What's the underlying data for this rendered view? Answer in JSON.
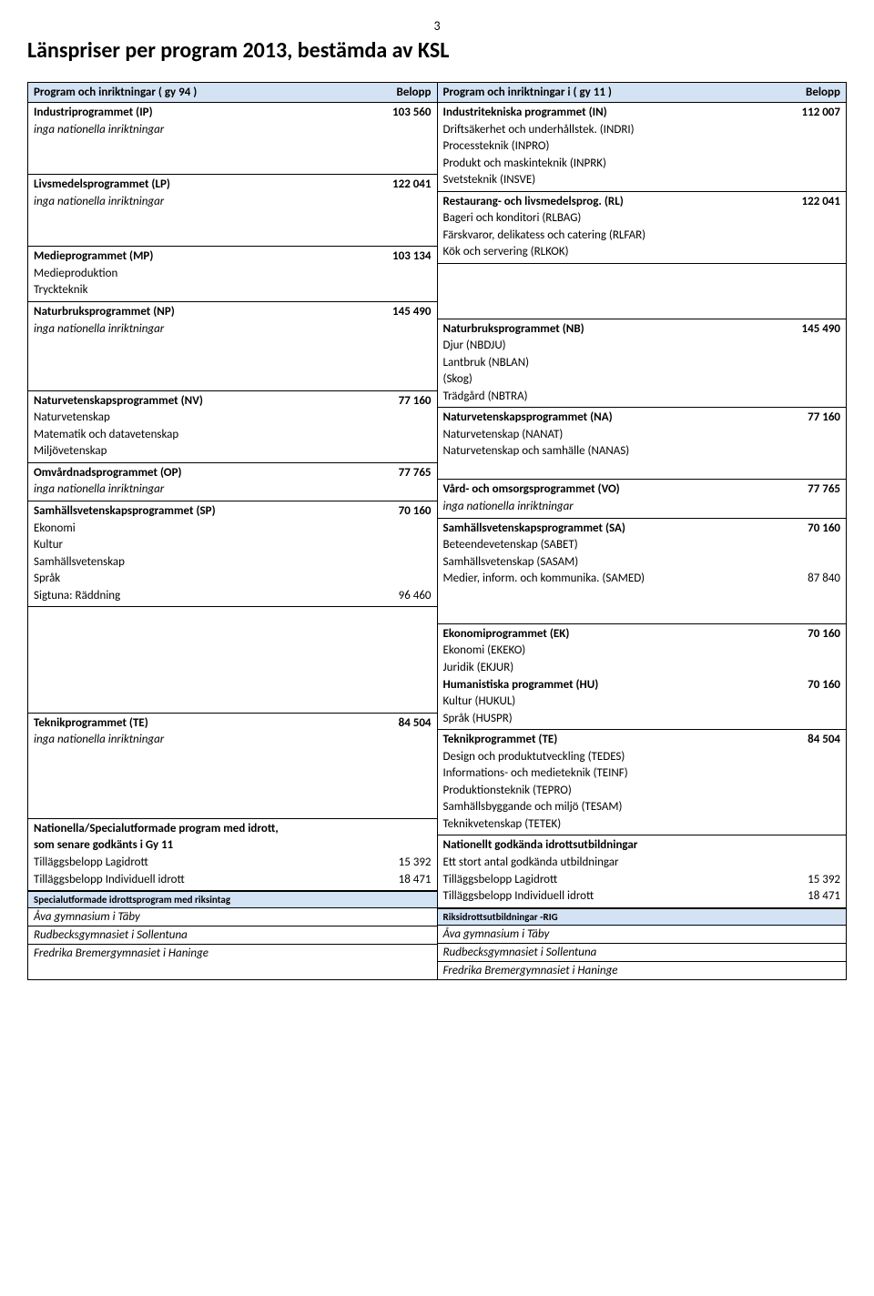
{
  "page_number": "3",
  "title": "Länspriser per program 2013, bestämda av KSL",
  "colors": {
    "header_bg": "#d4e3f4",
    "border": "#000000",
    "text": "#000000",
    "bg": "#ffffff"
  },
  "left": {
    "header": {
      "label": "Program och inriktningar ( gy 94 )",
      "amount": "Belopp"
    },
    "sections": [
      {
        "rows": [
          {
            "l": "Industriprogrammet (IP)",
            "r": "103 560",
            "b": true
          },
          {
            "l": "inga nationella inriktningar",
            "i": true
          }
        ],
        "pad_rows": 2
      },
      {
        "rows": [
          {
            "l": "Livsmedelsprogrammet (LP)",
            "r": "122 041",
            "b": true
          },
          {
            "l": "inga nationella inriktningar",
            "i": true
          }
        ],
        "pad_rows": 2
      },
      {
        "rows": [
          {
            "l": "Medieprogrammet (MP)",
            "r": "103 134",
            "b": true
          },
          {
            "l": "Medieproduktion"
          },
          {
            "l": "Tryckteknik"
          }
        ]
      },
      {
        "rows": [
          {
            "l": "Naturbruksprogrammet (NP)",
            "r": "145 490",
            "b": true
          },
          {
            "l": "inga nationella inriktningar",
            "i": true
          }
        ],
        "pad_rows": 3
      },
      {
        "rows": [
          {
            "l": "Naturvetenskapsprogrammet (NV)",
            "r": "77 160",
            "b": true
          },
          {
            "l": "Naturvetenskap"
          },
          {
            "l": "Matematik och datavetenskap"
          },
          {
            "l": "Miljövetenskap"
          }
        ]
      },
      {
        "rows": [
          {
            "l": "Omvårdnadsprogrammet (OP)",
            "r": "77 765",
            "b": true
          },
          {
            "l": "inga nationella inriktningar",
            "i": true
          }
        ]
      },
      {
        "rows": [
          {
            "l": "Samhällsvetenskapsprogrammet (SP)",
            "r": "70 160",
            "b": true
          },
          {
            "l": "Ekonomi"
          },
          {
            "l": "Kultur"
          },
          {
            "l": "Samhällsvetenskap"
          },
          {
            "l": "Språk"
          },
          {
            "l": "Sigtuna: Räddning",
            "r": "96 460"
          }
        ]
      },
      {
        "rows": [],
        "pad_rows": 6
      },
      {
        "rows": [
          {
            "l": "Teknikprogrammet (TE)",
            "r": "84 504",
            "b": true
          },
          {
            "l": "inga nationella inriktningar",
            "i": true
          }
        ],
        "pad_rows": 4
      },
      {
        "rows": [
          {
            "l": "Nationella/Specialutformade program med idrott,",
            "b": true
          },
          {
            "l": "som senare godkänts i Gy 11",
            "b": true
          },
          {
            "l": "Tilläggsbelopp Lagidrott",
            "r": "15 392"
          },
          {
            "l": "Tilläggsbelopp Individuell idrott",
            "r": "18 471"
          }
        ]
      }
    ],
    "small_header": "Specialutformade idrottsprogram med riksintag",
    "bottom": [
      "Åva gymnasium i Täby",
      "Rudbecksgymnasiet i Sollentuna",
      "Fredrika Bremergymnasiet i Haninge"
    ]
  },
  "right": {
    "header": {
      "label": "Program och inriktningar i ( gy 11 )",
      "amount": "Belopp"
    },
    "sections": [
      {
        "rows": [
          {
            "l": "Industritekniska programmet (IN)",
            "r": "112 007",
            "b": true
          },
          {
            "l": "Driftsäkerhet och underhållstek. (INDRI)"
          },
          {
            "l": "Processteknik (INPRO)"
          },
          {
            "l": "Produkt och maskinteknik (INPRK)"
          },
          {
            "l": "Svetsteknik (INSVE)"
          }
        ]
      },
      {
        "rows": [
          {
            "l": "Restaurang- och livsmedelsprog. (RL)",
            "r": "122 041",
            "b": true
          },
          {
            "l": "Bageri och konditori (RLBAG)"
          },
          {
            "l": "Färskvaror, delikatess och catering (RLFAR)"
          },
          {
            "l": "Kök och servering (RLKOK)"
          }
        ]
      },
      {
        "rows": [],
        "pad_rows": 3
      },
      {
        "rows": [
          {
            "l": "Naturbruksprogrammet (NB)",
            "r": "145 490",
            "b": true
          },
          {
            "l": "Djur (NBDJU)"
          },
          {
            "l": "Lantbruk (NBLAN)"
          },
          {
            "l": "(Skog)"
          },
          {
            "l": "Trädgård (NBTRA)"
          }
        ]
      },
      {
        "rows": [
          {
            "l": "Naturvetenskapsprogrammet (NA)",
            "r": "77 160",
            "b": true
          },
          {
            "l": "Naturvetenskap (NANAT)"
          },
          {
            "l": "Naturvetenskap och samhälle (NANAS)"
          }
        ],
        "pad_rows": 1
      },
      {
        "rows": [
          {
            "l": "Vård- och omsorgsprogrammet (VO)",
            "r": "77 765",
            "b": true
          },
          {
            "l": "inga nationella inriktningar",
            "i": true
          }
        ]
      },
      {
        "rows": [
          {
            "l": "Samhällsvetenskapsprogrammet (SA)",
            "r": "70 160",
            "b": true
          },
          {
            "l": "Beteendevetenskap (SABET)"
          },
          {
            "l": "Samhällsvetenskap (SASAM)"
          },
          {
            "l": "Medier, inform. och kommunika. (SAMED)",
            "r": "87 840"
          }
        ],
        "pad_rows": 2
      },
      {
        "rows": [
          {
            "l": "Ekonomiprogrammet (EK)",
            "r": "70 160",
            "b": true
          },
          {
            "l": "Ekonomi (EKEKO)"
          },
          {
            "l": "Juridik (EKJUR)"
          },
          {
            "l": "Humanistiska programmet (HU)",
            "r": "70 160",
            "b": true
          },
          {
            "l": "Kultur (HUKUL)"
          },
          {
            "l": "Språk (HUSPR)"
          }
        ]
      },
      {
        "rows": [
          {
            "l": "Teknikprogrammet (TE)",
            "r": "84 504",
            "b": true
          },
          {
            "l": "Design och produktutveckling (TEDES)"
          },
          {
            "l": "Informations- och medieteknik (TEINF)"
          },
          {
            "l": "Produktionsteknik (TEPRO)"
          },
          {
            "l": "Samhällsbyggande och miljö (TESAM)"
          },
          {
            "l": "Teknikvetenskap (TETEK)"
          }
        ]
      },
      {
        "rows": [
          {
            "l": "Nationellt godkända idrottsutbildningar",
            "b": true
          },
          {
            "l": "Ett stort antal godkända utbildningar"
          },
          {
            "l": "Tilläggsbelopp Lagidrott",
            "r": "15 392"
          },
          {
            "l": "Tilläggsbelopp Individuell idrott",
            "r": "18 471"
          }
        ]
      }
    ],
    "small_header": "Riksidrottsutbildningar -RIG",
    "bottom": [
      "Åva gymnasium i Täby",
      "Rudbecksgymnasiet i Sollentuna",
      "Fredrika Bremergymnasiet i Haninge"
    ]
  }
}
